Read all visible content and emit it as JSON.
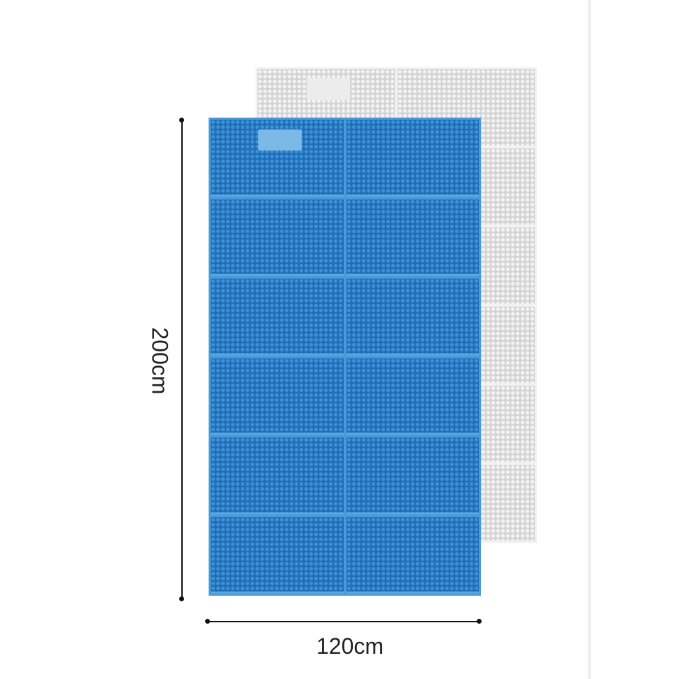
{
  "product": {
    "mat_color": "#1f6fb8",
    "back_mat_color": "#d4d4d4",
    "panel_rows": 6,
    "panel_columns": 2
  },
  "dimensions": {
    "height_label": "200cm",
    "width_label": "120cm"
  }
}
